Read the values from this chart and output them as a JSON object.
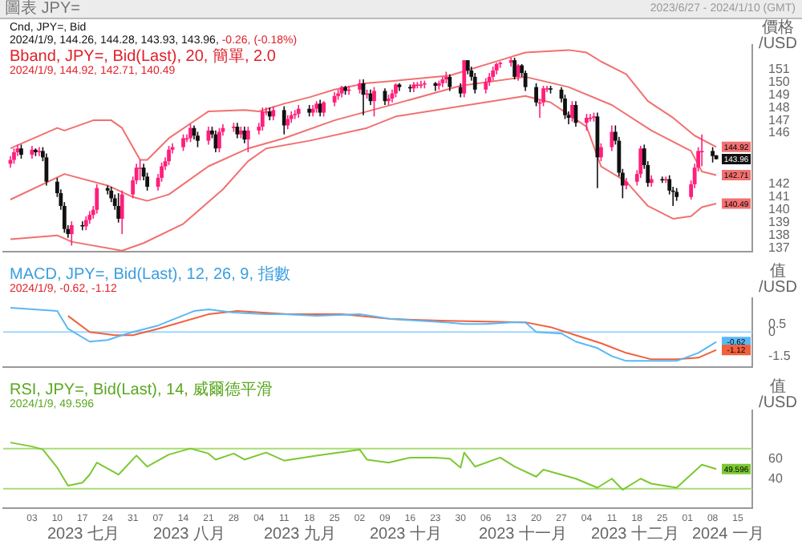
{
  "chart_data": [
    {
      "type": "candlestick",
      "title": "圖表 JPY=",
      "subtitle": "2023/6/27 - 2024/1/10 (GMT)",
      "ylabel": "價格 /USD",
      "tick_labels": "y",
      "annotations": [
        "Cnd, JPY=, Bid",
        "2024/1/9, 144.26, 144.28, 143.93, 143.96,",
        "-0.26, (-0.18%)",
        "Bband, JPY=, Bid(Last), 20, 簡單, 2.0",
        "2024/1/9, 144.92, 142.71, 140.49"
      ],
      "xlim": [
        "2023-06-25",
        "2024-01-19"
      ],
      "ylim": [
        136.7,
        152.9
      ],
      "yticks": [
        137,
        138,
        139,
        140,
        141,
        142,
        146,
        147,
        148,
        149,
        150,
        151
      ],
      "x": [
        "2023-06-27",
        "2023-06-28",
        "2023-06-29",
        "2023-06-30",
        "2023-07-03",
        "2023-07-04",
        "2023-07-05",
        "2023-07-06",
        "2023-07-07",
        "2023-07-10",
        "2023-07-11",
        "2023-07-12",
        "2023-07-13",
        "2023-07-14",
        "2023-07-17",
        "2023-07-18",
        "2023-07-19",
        "2023-07-20",
        "2023-07-21",
        "2023-07-24",
        "2023-07-25",
        "2023-07-26",
        "2023-07-27",
        "2023-07-28",
        "2023-07-31",
        "2023-08-01",
        "2023-08-02",
        "2023-08-03",
        "2023-08-04",
        "2023-08-07",
        "2023-08-08",
        "2023-08-09",
        "2023-08-10",
        "2023-08-11",
        "2023-08-14",
        "2023-08-15",
        "2023-08-16",
        "2023-08-17",
        "2023-08-18",
        "2023-08-21",
        "2023-08-22",
        "2023-08-23",
        "2023-08-24",
        "2023-08-25",
        "2023-08-28",
        "2023-08-29",
        "2023-08-30",
        "2023-08-31",
        "2023-09-01",
        "2023-09-04",
        "2023-09-05",
        "2023-09-06",
        "2023-09-07",
        "2023-09-08",
        "2023-09-11",
        "2023-09-12",
        "2023-09-13",
        "2023-09-14",
        "2023-09-15",
        "2023-09-18",
        "2023-09-19",
        "2023-09-20",
        "2023-09-21",
        "2023-09-22",
        "2023-09-25",
        "2023-09-26",
        "2023-09-27",
        "2023-09-28",
        "2023-09-29",
        "2023-10-02",
        "2023-10-03",
        "2023-10-04",
        "2023-10-05",
        "2023-10-06",
        "2023-10-09",
        "2023-10-10",
        "2023-10-11",
        "2023-10-12",
        "2023-10-13",
        "2023-10-16",
        "2023-10-17",
        "2023-10-18",
        "2023-10-19",
        "2023-10-20",
        "2023-10-23",
        "2023-10-24",
        "2023-10-25",
        "2023-10-26",
        "2023-10-27",
        "2023-10-30",
        "2023-10-31",
        "2023-11-01",
        "2023-11-02",
        "2023-11-03",
        "2023-11-06",
        "2023-11-07",
        "2023-11-08",
        "2023-11-09",
        "2023-11-10",
        "2023-11-13",
        "2023-11-14",
        "2023-11-15",
        "2023-11-16",
        "2023-11-17",
        "2023-11-20",
        "2023-11-21",
        "2023-11-22",
        "2023-11-23",
        "2023-11-24",
        "2023-11-27",
        "2023-11-28",
        "2023-11-29",
        "2023-11-30",
        "2023-12-01",
        "2023-12-04",
        "2023-12-05",
        "2023-12-06",
        "2023-12-07",
        "2023-12-08",
        "2023-12-11",
        "2023-12-12",
        "2023-12-13",
        "2023-12-14",
        "2023-12-15",
        "2023-12-18",
        "2023-12-19",
        "2023-12-20",
        "2023-12-21",
        "2023-12-22",
        "2023-12-25",
        "2023-12-26",
        "2023-12-27",
        "2023-12-28",
        "2023-12-29",
        "2024-01-02",
        "2024-01-03",
        "2024-01-04",
        "2024-01-05",
        "2024-01-08",
        "2024-01-09"
      ],
      "ohlc": [
        [
          143.6,
          144.2,
          143.3,
          143.9
        ],
        [
          143.9,
          144.8,
          143.6,
          144.5
        ],
        [
          144.5,
          145.1,
          144.2,
          144.8
        ],
        [
          144.8,
          145.1,
          144.0,
          144.3
        ],
        [
          144.3,
          145.0,
          144.0,
          144.7
        ],
        [
          144.7,
          144.8,
          144.2,
          144.5
        ],
        [
          144.5,
          144.9,
          144.2,
          144.6
        ],
        [
          144.6,
          144.9,
          143.8,
          144.1
        ],
        [
          144.1,
          144.4,
          141.9,
          142.2
        ],
        [
          142.2,
          142.5,
          141.0,
          141.3
        ],
        [
          141.3,
          141.6,
          140.0,
          140.3
        ],
        [
          140.3,
          140.6,
          138.2,
          138.5
        ],
        [
          138.5,
          138.8,
          137.8,
          138.1
        ],
        [
          138.1,
          139.1,
          137.2,
          138.8
        ],
        [
          138.8,
          139.1,
          138.4,
          138.7
        ],
        [
          138.7,
          139.5,
          138.4,
          139.2
        ],
        [
          139.2,
          139.9,
          138.9,
          139.6
        ],
        [
          139.6,
          140.3,
          139.3,
          140.0
        ],
        [
          140.0,
          142.0,
          139.7,
          141.7
        ],
        [
          141.7,
          141.9,
          141.2,
          141.5
        ],
        [
          141.5,
          141.8,
          140.6,
          140.9
        ],
        [
          140.9,
          141.2,
          140.0,
          140.3
        ],
        [
          140.3,
          141.3,
          139.0,
          139.3
        ],
        [
          139.3,
          141.5,
          138.1,
          141.2
        ],
        [
          141.2,
          142.6,
          140.9,
          142.3
        ],
        [
          142.3,
          143.6,
          142.0,
          143.3
        ],
        [
          143.3,
          143.9,
          142.3,
          143.3
        ],
        [
          143.3,
          143.6,
          142.3,
          142.6
        ],
        [
          142.6,
          142.9,
          141.5,
          141.8
        ],
        [
          141.8,
          142.8,
          141.5,
          142.5
        ],
        [
          142.5,
          143.7,
          142.2,
          143.4
        ],
        [
          143.4,
          144.1,
          143.1,
          143.8
        ],
        [
          143.8,
          145.0,
          143.5,
          144.7
        ],
        [
          144.7,
          145.2,
          144.4,
          144.9
        ],
        [
          144.9,
          145.9,
          144.6,
          145.6
        ],
        [
          145.6,
          145.9,
          145.3,
          145.6
        ],
        [
          145.6,
          146.7,
          145.3,
          146.4
        ],
        [
          146.4,
          146.6,
          145.5,
          145.8
        ],
        [
          145.8,
          146.1,
          144.9,
          145.4
        ],
        [
          145.4,
          146.5,
          145.1,
          146.2
        ],
        [
          146.2,
          146.5,
          145.6,
          145.9
        ],
        [
          145.9,
          146.2,
          144.5,
          144.8
        ],
        [
          144.8,
          146.4,
          144.5,
          146.1
        ],
        [
          146.1,
          146.7,
          145.8,
          146.4
        ],
        [
          146.4,
          146.8,
          146.1,
          146.5
        ],
        [
          146.5,
          146.8,
          145.6,
          145.9
        ],
        [
          145.9,
          146.5,
          145.6,
          146.2
        ],
        [
          146.2,
          146.5,
          145.2,
          145.5
        ],
        [
          145.5,
          146.5,
          144.5,
          146.2
        ],
        [
          146.2,
          146.8,
          145.9,
          146.5
        ],
        [
          146.5,
          148.0,
          146.2,
          147.7
        ],
        [
          147.7,
          148.0,
          147.4,
          147.7
        ],
        [
          147.7,
          148.0,
          147.0,
          147.3
        ],
        [
          147.3,
          148.1,
          147.0,
          147.8
        ],
        [
          147.8,
          148.1,
          145.9,
          146.6
        ],
        [
          146.6,
          147.4,
          146.3,
          147.1
        ],
        [
          147.1,
          147.7,
          146.8,
          147.4
        ],
        [
          147.4,
          147.8,
          147.1,
          147.5
        ],
        [
          147.5,
          148.2,
          147.2,
          147.9
        ],
        [
          147.9,
          148.2,
          147.3,
          147.6
        ],
        [
          147.6,
          148.2,
          147.3,
          147.9
        ],
        [
          147.9,
          148.5,
          147.6,
          148.3
        ],
        [
          148.3,
          148.6,
          147.3,
          147.6
        ],
        [
          147.6,
          148.5,
          147.3,
          148.4
        ],
        [
          148.4,
          149.2,
          148.1,
          148.9
        ],
        [
          148.9,
          149.4,
          148.6,
          149.1
        ],
        [
          149.1,
          149.7,
          148.8,
          149.6
        ],
        [
          149.6,
          149.7,
          149.0,
          149.3
        ],
        [
          149.3,
          149.7,
          149.0,
          149.4
        ],
        [
          149.4,
          150.2,
          149.1,
          149.9
        ],
        [
          149.9,
          150.2,
          147.4,
          149.0
        ],
        [
          149.0,
          149.4,
          148.7,
          149.1
        ],
        [
          149.1,
          149.4,
          148.2,
          148.5
        ],
        [
          148.5,
          149.6,
          147.3,
          149.3
        ],
        [
          149.3,
          149.5,
          148.2,
          148.5
        ],
        [
          148.5,
          149.0,
          148.2,
          148.7
        ],
        [
          148.7,
          149.4,
          148.4,
          149.1
        ],
        [
          149.1,
          149.9,
          148.8,
          149.8
        ],
        [
          149.8,
          149.9,
          149.3,
          149.6
        ],
        [
          149.6,
          149.8,
          149.2,
          149.5
        ],
        [
          149.5,
          150.0,
          149.2,
          149.8
        ],
        [
          149.8,
          150.0,
          149.5,
          149.8
        ],
        [
          149.8,
          150.1,
          149.5,
          149.8
        ],
        [
          149.8,
          150.1,
          149.5,
          149.9
        ],
        [
          149.9,
          150.0,
          149.3,
          149.7
        ],
        [
          149.7,
          150.1,
          149.4,
          149.9
        ],
        [
          149.9,
          150.4,
          149.6,
          150.2
        ],
        [
          150.2,
          150.8,
          149.9,
          150.4
        ],
        [
          150.4,
          150.6,
          149.3,
          149.6
        ],
        [
          149.6,
          149.9,
          148.8,
          149.1
        ],
        [
          149.1,
          151.7,
          148.8,
          151.7
        ],
        [
          151.7,
          151.7,
          150.6,
          150.9
        ],
        [
          150.9,
          151.2,
          150.1,
          150.4
        ],
        [
          150.4,
          150.7,
          149.1,
          149.4
        ],
        [
          149.4,
          150.3,
          149.1,
          150.0
        ],
        [
          150.0,
          150.7,
          149.7,
          150.4
        ],
        [
          150.4,
          151.2,
          150.1,
          150.9
        ],
        [
          150.9,
          151.5,
          150.6,
          151.4
        ],
        [
          151.4,
          151.6,
          151.1,
          151.5
        ],
        [
          151.5,
          151.9,
          151.2,
          151.7
        ],
        [
          151.7,
          151.9,
          150.2,
          150.4
        ],
        [
          150.4,
          151.4,
          150.1,
          151.3
        ],
        [
          151.3,
          151.4,
          150.4,
          150.7
        ],
        [
          150.7,
          150.9,
          149.3,
          149.6
        ],
        [
          149.6,
          149.9,
          148.1,
          148.4
        ],
        [
          148.4,
          148.6,
          147.2,
          148.4
        ],
        [
          148.4,
          149.7,
          148.1,
          149.5
        ],
        [
          149.5,
          149.7,
          149.2,
          149.5
        ],
        [
          149.5,
          149.7,
          149.1,
          149.4
        ],
        [
          149.4,
          149.6,
          148.4,
          148.7
        ],
        [
          148.7,
          149.0,
          147.1,
          147.4
        ],
        [
          147.4,
          147.7,
          146.7,
          147.2
        ],
        [
          147.2,
          148.5,
          146.9,
          148.2
        ],
        [
          148.2,
          148.5,
          146.5,
          146.8
        ],
        [
          146.8,
          147.5,
          146.2,
          147.2
        ],
        [
          147.2,
          147.5,
          146.9,
          147.2
        ],
        [
          147.2,
          147.6,
          146.9,
          147.3
        ],
        [
          147.3,
          147.6,
          141.7,
          144.1
        ],
        [
          144.1,
          145.2,
          143.8,
          144.9
        ],
        [
          144.9,
          146.6,
          144.6,
          146.1
        ],
        [
          146.1,
          146.6,
          145.1,
          145.4
        ],
        [
          145.4,
          145.7,
          142.6,
          142.9
        ],
        [
          142.9,
          143.2,
          140.9,
          141.9
        ],
        [
          141.9,
          142.5,
          141.6,
          142.2
        ],
        [
          142.2,
          143.1,
          141.9,
          142.8
        ],
        [
          142.8,
          145.0,
          142.5,
          144.8
        ],
        [
          144.8,
          145.1,
          143.2,
          143.5
        ],
        [
          143.5,
          143.8,
          141.8,
          142.1
        ],
        [
          142.1,
          142.7,
          141.8,
          142.4
        ],
        [
          142.4,
          142.6,
          142.1,
          142.3
        ],
        [
          142.3,
          142.6,
          142.1,
          142.4
        ],
        [
          142.4,
          142.7,
          141.2,
          141.5
        ],
        [
          141.5,
          141.8,
          140.3,
          141.4
        ],
        [
          141.4,
          141.7,
          140.7,
          141.0
        ],
        [
          141.0,
          142.3,
          140.8,
          142.0
        ],
        [
          142.0,
          143.6,
          141.7,
          143.3
        ],
        [
          143.3,
          144.9,
          143.0,
          144.6
        ],
        [
          144.6,
          145.9,
          143.4,
          144.6
        ],
        [
          144.6,
          144.9,
          143.7,
          144.2
        ],
        [
          144.26,
          144.28,
          143.93,
          143.96
        ]
      ],
      "colors": [
        "#ff1f7a",
        "#ff1f7a",
        "#ff1f7a",
        "#111111",
        "#ff1f7a",
        "#111111",
        "#ff1f7a",
        "#111111",
        "#111111",
        "#111111",
        "#111111",
        "#111111",
        "#111111",
        "#ff1f7a",
        "#111111",
        "#ff1f7a",
        "#ff1f7a",
        "#ff1f7a",
        "#ff1f7a",
        "#111111",
        "#111111",
        "#111111",
        "#111111",
        "#ff1f7a",
        "#ff1f7a",
        "#ff1f7a",
        "#ff1f7a",
        "#111111",
        "#111111",
        "#ff1f7a",
        "#ff1f7a",
        "#ff1f7a",
        "#ff1f7a",
        "#ff1f7a",
        "#ff1f7a",
        "#ff1f7a",
        "#ff1f7a",
        "#111111",
        "#111111",
        "#ff1f7a",
        "#111111",
        "#111111",
        "#ff1f7a",
        "#ff1f7a",
        "#ff1f7a",
        "#111111",
        "#ff1f7a",
        "#111111",
        "#ff1f7a",
        "#ff1f7a",
        "#ff1f7a",
        "#ff1f7a",
        "#111111",
        "#ff1f7a",
        "#111111",
        "#ff1f7a",
        "#ff1f7a",
        "#ff1f7a",
        "#ff1f7a",
        "#111111",
        "#ff1f7a",
        "#ff1f7a",
        "#111111",
        "#ff1f7a",
        "#ff1f7a",
        "#ff1f7a",
        "#ff1f7a",
        "#111111",
        "#ff1f7a",
        "#ff1f7a",
        "#111111",
        "#ff1f7a",
        "#111111",
        "#ff1f7a",
        "#111111",
        "#ff1f7a",
        "#ff1f7a",
        "#ff1f7a",
        "#111111",
        "#111111",
        "#ff1f7a",
        "#ff1f7a",
        "#ff1f7a",
        "#ff1f7a",
        "#111111",
        "#ff1f7a",
        "#ff1f7a",
        "#ff1f7a",
        "#111111",
        "#111111",
        "#ff1f7a",
        "#111111",
        "#111111",
        "#111111",
        "#ff1f7a",
        "#ff1f7a",
        "#ff1f7a",
        "#ff1f7a",
        "#ff1f7a",
        "#ff1f7a",
        "#111111",
        "#ff1f7a",
        "#111111",
        "#111111",
        "#111111",
        "#ff1f7a",
        "#ff1f7a",
        "#ff1f7a",
        "#111111",
        "#111111",
        "#111111",
        "#111111",
        "#ff1f7a",
        "#111111",
        "#ff1f7a",
        "#ff1f7a",
        "#ff1f7a",
        "#111111",
        "#ff1f7a",
        "#ff1f7a",
        "#111111",
        "#111111",
        "#111111",
        "#ff1f7a",
        "#ff1f7a",
        "#ff1f7a",
        "#111111",
        "#111111",
        "#ff1f7a",
        "#111111",
        "#ff1f7a",
        "#111111",
        "#111111",
        "#111111",
        "#ff1f7a",
        "#ff1f7a",
        "#ff1f7a",
        "#ff1f7a",
        "#111111",
        "#111111"
      ],
      "value_labels": [
        null,
        null,
        null,
        null,
        null,
        null,
        null,
        null,
        null,
        null,
        null,
        null,
        null,
        null,
        null,
        null,
        null,
        null,
        null,
        null,
        null,
        null,
        null,
        null,
        null,
        null,
        null,
        null,
        null,
        null,
        null,
        null,
        null,
        null,
        null,
        null,
        null,
        null,
        null,
        null,
        null,
        null,
        null,
        null,
        null,
        null,
        null,
        null,
        null,
        null,
        null,
        null,
        null,
        null,
        null,
        null,
        null,
        null,
        null,
        null,
        null,
        null,
        null,
        null,
        null,
        null,
        null,
        null,
        null,
        null,
        null,
        null,
        null,
        null,
        null,
        null,
        null,
        null,
        null,
        null,
        null,
        null,
        null,
        null,
        null,
        null,
        null,
        null,
        null,
        null,
        null,
        null,
        null,
        null,
        null,
        null,
        null,
        null,
        null,
        null,
        null,
        null,
        null,
        null,
        null,
        null,
        null,
        null,
        null,
        null,
        null,
        null,
        null,
        null,
        null,
        null,
        null,
        null,
        null,
        null,
        null,
        null,
        null,
        null,
        null,
        null,
        null,
        null,
        null,
        null,
        null,
        null,
        null,
        null,
        null,
        null,
        null,
        null,
        null,
        "143.96"
      ],
      "series": [
        {
          "type": "line",
          "color": "#f27070",
          "x": [
            "2023-06-27",
            "2023-07-10",
            "2023-07-12",
            "2023-07-20",
            "2023-07-25",
            "2023-07-28",
            "2023-08-02",
            "2023-08-04",
            "2023-08-10",
            "2023-08-21",
            "2023-08-31",
            "2023-09-04",
            "2023-09-11",
            "2023-09-18",
            "2023-09-25",
            "2023-10-04",
            "2023-10-12",
            "2023-10-27",
            "2023-11-10",
            "2023-11-17",
            "2023-11-29",
            "2023-12-04",
            "2023-12-08",
            "2023-12-15",
            "2023-12-21",
            "2023-12-28",
            "2024-01-03",
            "2024-01-09"
          ],
          "values": [
            144.8,
            146.4,
            146.2,
            147.0,
            147.0,
            146.4,
            143.9,
            143.9,
            145.6,
            147.7,
            147.8,
            147.7,
            148.3,
            148.8,
            149.4,
            149.9,
            150.1,
            150.5,
            151.7,
            152.3,
            152.5,
            152.3,
            151.6,
            150.6,
            148.5,
            147.2,
            145.8,
            144.92
          ],
          "value_labels": [
            null,
            null,
            null,
            null,
            null,
            null,
            null,
            null,
            null,
            null,
            null,
            null,
            null,
            null,
            null,
            null,
            null,
            null,
            null,
            null,
            null,
            null,
            null,
            null,
            null,
            null,
            null,
            "144.92"
          ]
        },
        {
          "type": "line",
          "color": "#f27070",
          "x": [
            "2023-06-27",
            "2023-07-12",
            "2023-07-24",
            "2023-07-31",
            "2023-08-04",
            "2023-08-10",
            "2023-08-21",
            "2023-09-01",
            "2023-09-11",
            "2023-09-25",
            "2023-10-12",
            "2023-10-30",
            "2023-11-17",
            "2023-11-29",
            "2023-12-11",
            "2023-12-22",
            "2024-01-02",
            "2024-01-05",
            "2024-01-09"
          ],
          "values": [
            140.8,
            142.8,
            141.9,
            141.0,
            140.7,
            141.2,
            143.4,
            144.8,
            145.6,
            147.0,
            148.3,
            149.7,
            150.4,
            149.6,
            148.2,
            146.2,
            144.6,
            143.0,
            142.71
          ],
          "value_labels": [
            null,
            null,
            null,
            null,
            null,
            null,
            null,
            null,
            null,
            null,
            null,
            null,
            null,
            null,
            null,
            null,
            null,
            null,
            "142.71"
          ]
        },
        {
          "type": "line",
          "color": "#f27070",
          "x": [
            "2023-06-27",
            "2023-07-10",
            "2023-07-14",
            "2023-07-28",
            "2023-08-03",
            "2023-08-14",
            "2023-08-25",
            "2023-09-01",
            "2023-09-06",
            "2023-09-18",
            "2023-10-04",
            "2023-10-12",
            "2023-11-17",
            "2023-11-24",
            "2023-12-04",
            "2023-12-08",
            "2023-12-15",
            "2023-12-21",
            "2023-12-28",
            "2024-01-02",
            "2024-01-05",
            "2024-01-09"
          ],
          "values": [
            137.7,
            138.0,
            137.5,
            136.8,
            137.4,
            138.9,
            141.6,
            143.8,
            144.8,
            145.4,
            146.4,
            147.3,
            148.9,
            148.4,
            146.5,
            143.4,
            142.2,
            140.3,
            139.3,
            139.5,
            140.2,
            140.49
          ],
          "value_labels": [
            null,
            null,
            null,
            null,
            null,
            null,
            null,
            null,
            null,
            null,
            null,
            null,
            null,
            null,
            null,
            null,
            null,
            null,
            null,
            null,
            null,
            "140.49"
          ]
        }
      ]
    },
    {
      "type": "line",
      "ylabel": "值 /USD",
      "tick_labels": "y",
      "annotations": [
        "MACD, JPY=, Bid(Last), 12, 26, 9, 指數",
        "2024/1/9, -0.62, -1.12"
      ],
      "xlim": [
        "2023-06-25",
        "2024-01-19"
      ],
      "ylim": [
        -2.2,
        2.1
      ],
      "yticks": [
        0.5,
        0,
        -1.5
      ],
      "ref_lines": [
        {
          "axis": "y",
          "value": 0,
          "color": "#9fd6ff"
        }
      ],
      "series": [
        {
          "color": "#5ab8f5",
          "x": [
            "2023-06-27",
            "2023-07-10",
            "2023-07-13",
            "2023-07-19",
            "2023-07-24",
            "2023-07-28",
            "2023-07-31",
            "2023-08-07",
            "2023-08-17",
            "2023-08-21",
            "2023-08-28",
            "2023-09-06",
            "2023-09-11",
            "2023-09-20",
            "2023-10-02",
            "2023-10-11",
            "2023-10-26",
            "2023-10-31",
            "2023-11-06",
            "2023-11-13",
            "2023-11-17",
            "2023-11-20",
            "2023-11-27",
            "2023-12-01",
            "2023-12-07",
            "2023-12-11",
            "2023-12-15",
            "2023-12-20",
            "2023-12-29",
            "2024-01-04",
            "2024-01-09"
          ],
          "values": [
            1.5,
            1.3,
            0.2,
            -0.6,
            -0.5,
            -0.2,
            0.0,
            0.4,
            1.3,
            1.4,
            1.2,
            1.1,
            1.1,
            1.0,
            1.1,
            0.8,
            0.6,
            0.5,
            0.5,
            0.6,
            0.6,
            0.0,
            -0.1,
            -0.6,
            -1.0,
            -1.5,
            -1.8,
            -1.8,
            -1.8,
            -1.3,
            -0.62
          ],
          "value_labels": [
            null,
            null,
            null,
            null,
            null,
            null,
            null,
            null,
            null,
            null,
            null,
            null,
            null,
            null,
            null,
            null,
            null,
            null,
            null,
            null,
            null,
            null,
            null,
            null,
            null,
            null,
            null,
            null,
            null,
            null,
            "-0.62"
          ]
        },
        {
          "color": "#f2603c",
          "x": [
            "2023-07-13",
            "2023-07-19",
            "2023-07-26",
            "2023-07-31",
            "2023-08-07",
            "2023-08-21",
            "2023-08-29",
            "2023-09-12",
            "2023-09-27",
            "2023-10-11",
            "2023-10-26",
            "2023-11-17",
            "2023-11-24",
            "2023-12-01",
            "2023-12-08",
            "2023-12-15",
            "2023-12-22",
            "2023-12-29",
            "2024-01-04",
            "2024-01-09"
          ],
          "values": [
            1.0,
            0.0,
            -0.2,
            -0.2,
            0.2,
            1.1,
            1.3,
            1.1,
            1.1,
            0.8,
            0.7,
            0.6,
            0.3,
            -0.2,
            -0.7,
            -1.3,
            -1.7,
            -1.7,
            -1.6,
            -1.12
          ],
          "value_labels": [
            null,
            null,
            null,
            null,
            null,
            null,
            null,
            null,
            null,
            null,
            null,
            null,
            null,
            null,
            null,
            null,
            null,
            null,
            null,
            "-1.12"
          ]
        }
      ]
    },
    {
      "type": "line",
      "ylabel": "值 /USD",
      "annotations": [
        "RSI, JPY=, Bid(Last), 14, 威爾德平滑",
        "2024/1/9, 49.596",
        "2023 七月",
        "2023 八月",
        "2023 九月",
        "2023 十月",
        "2023 十一月",
        "2023 十二月",
        "2024 一月"
      ],
      "xlim": [
        "2023-06-25",
        "2024-01-19"
      ],
      "ylim": [
        11,
        108
      ],
      "yticks": [
        60,
        40
      ],
      "xticks": [
        {
          "value": "2023-07-03",
          "label": "03"
        },
        {
          "value": "2023-07-10",
          "label": "10"
        },
        {
          "value": "2023-07-17",
          "label": "17"
        },
        {
          "value": "2023-07-24",
          "label": "24"
        },
        {
          "value": "2023-07-31",
          "label": "31"
        },
        {
          "value": "2023-08-07",
          "label": "07"
        },
        {
          "value": "2023-08-14",
          "label": "14"
        },
        {
          "value": "2023-08-21",
          "label": "21"
        },
        {
          "value": "2023-08-28",
          "label": "28"
        },
        {
          "value": "2023-09-04",
          "label": "04"
        },
        {
          "value": "2023-09-11",
          "label": "11"
        },
        {
          "value": "2023-09-18",
          "label": "18"
        },
        {
          "value": "2023-09-25",
          "label": "25"
        },
        {
          "value": "2023-10-02",
          "label": "02"
        },
        {
          "value": "2023-10-09",
          "label": "09"
        },
        {
          "value": "2023-10-16",
          "label": "16"
        },
        {
          "value": "2023-10-23",
          "label": "23"
        },
        {
          "value": "2023-10-30",
          "label": "30"
        },
        {
          "value": "2023-11-06",
          "label": "06"
        },
        {
          "value": "2023-11-13",
          "label": "13"
        },
        {
          "value": "2023-11-20",
          "label": "20"
        },
        {
          "value": "2023-11-27",
          "label": "27"
        },
        {
          "value": "2023-12-04",
          "label": "04"
        },
        {
          "value": "2023-12-11",
          "label": "11"
        },
        {
          "value": "2023-12-18",
          "label": "18"
        },
        {
          "value": "2023-12-25",
          "label": "25"
        },
        {
          "value": "2024-01-01",
          "label": "01"
        },
        {
          "value": "2024-01-08",
          "label": "08"
        },
        {
          "value": "2024-01-15",
          "label": "15"
        }
      ],
      "ref_lines": [
        {
          "axis": "y",
          "value": 70,
          "color": "#a8dc78"
        },
        {
          "axis": "y",
          "value": 30,
          "color": "#a8dc78"
        }
      ],
      "series": [
        {
          "color": "#7cc832",
          "x": [
            "2023-06-27",
            "2023-07-03",
            "2023-07-06",
            "2023-07-10",
            "2023-07-13",
            "2023-07-17",
            "2023-07-19",
            "2023-07-21",
            "2023-07-27",
            "2023-08-01",
            "2023-08-04",
            "2023-08-10",
            "2023-08-16",
            "2023-08-21",
            "2023-08-23",
            "2023-08-28",
            "2023-08-31",
            "2023-09-06",
            "2023-09-11",
            "2023-09-20",
            "2023-09-26",
            "2023-10-02",
            "2023-10-04",
            "2023-10-10",
            "2023-10-16",
            "2023-10-23",
            "2023-10-27",
            "2023-10-30",
            "2023-10-31",
            "2023-11-03",
            "2023-11-10",
            "2023-11-14",
            "2023-11-20",
            "2023-11-22",
            "2023-12-01",
            "2023-12-07",
            "2023-12-11",
            "2023-12-14",
            "2023-12-19",
            "2023-12-22",
            "2023-12-29",
            "2024-01-05",
            "2024-01-09"
          ],
          "values": [
            76,
            72,
            69,
            51,
            33,
            36,
            44,
            56,
            44,
            63,
            52,
            64,
            70,
            65,
            59,
            65,
            59,
            66,
            58,
            63,
            66,
            69,
            59,
            56,
            61,
            61,
            60,
            51,
            66,
            52,
            61,
            52,
            42,
            49,
            40,
            31,
            40,
            29,
            40,
            35,
            31,
            54,
            49.596
          ],
          "value_labels": [
            null,
            null,
            null,
            null,
            null,
            null,
            null,
            null,
            null,
            null,
            null,
            null,
            null,
            null,
            null,
            null,
            null,
            null,
            null,
            null,
            null,
            null,
            null,
            null,
            null,
            null,
            null,
            null,
            null,
            null,
            null,
            null,
            null,
            null,
            null,
            null,
            null,
            null,
            null,
            null,
            null,
            null,
            "49.596"
          ]
        }
      ]
    }
  ]
}
